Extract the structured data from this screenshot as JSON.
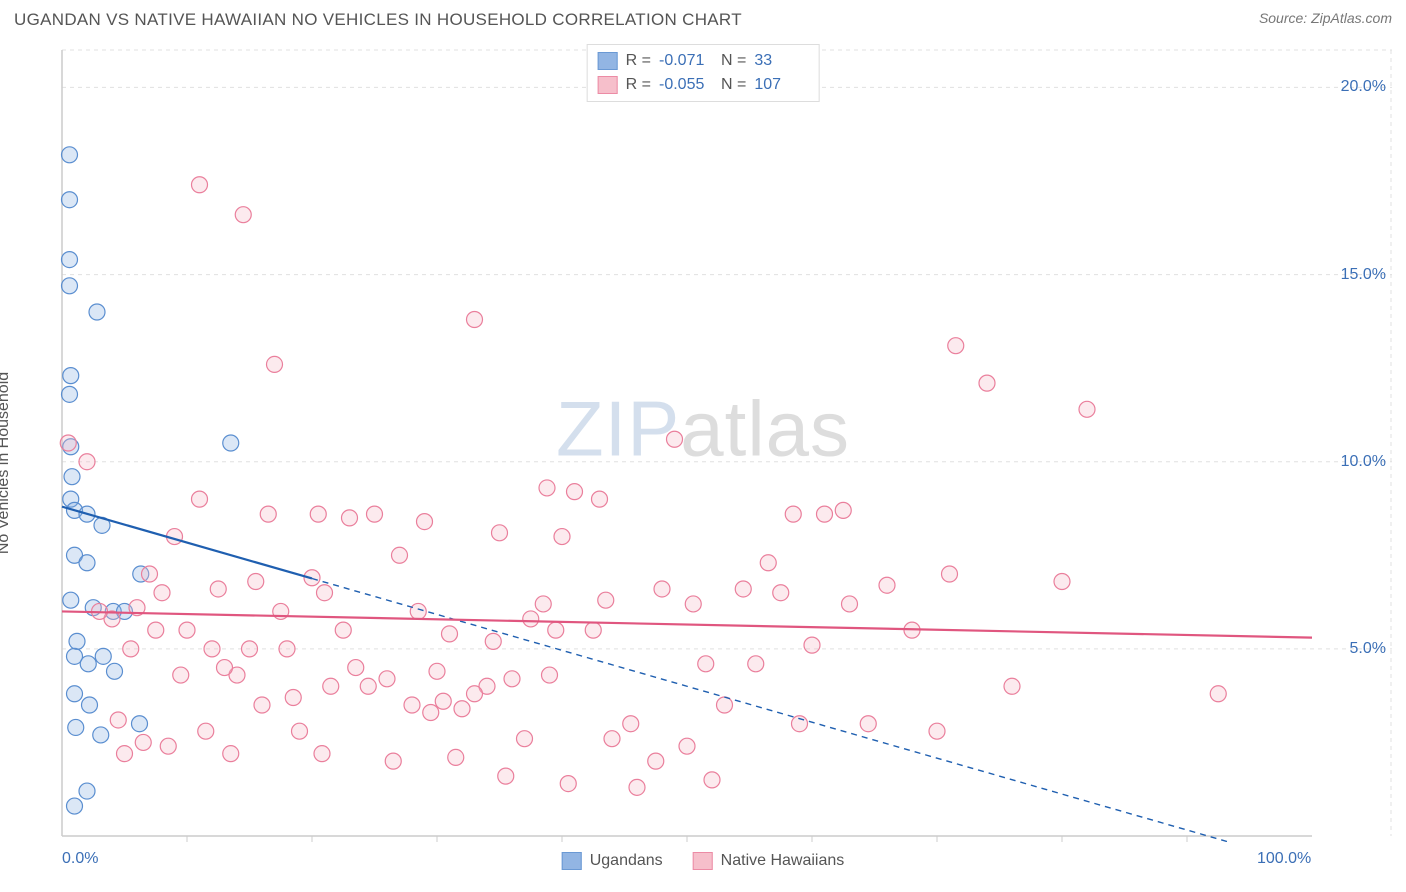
{
  "header": {
    "title": "UGANDAN VS NATIVE HAWAIIAN NO VEHICLES IN HOUSEHOLD CORRELATION CHART",
    "source_label": "Source: ",
    "source_name": "ZipAtlas.com"
  },
  "y_axis_label": "No Vehicles in Household",
  "watermark": {
    "part1": "ZIP",
    "part2": "atlas"
  },
  "chart": {
    "type": "scatter",
    "background_color": "#ffffff",
    "grid_color": "#e0e0e0",
    "axis_color": "#cccccc",
    "label_color": "#3b6fb6",
    "xlim": [
      0,
      100
    ],
    "ylim": [
      0,
      21
    ],
    "y_ticks": [
      {
        "val": 5.0,
        "label": "5.0%"
      },
      {
        "val": 10.0,
        "label": "10.0%"
      },
      {
        "val": 15.0,
        "label": "15.0%"
      },
      {
        "val": 20.0,
        "label": "20.0%"
      }
    ],
    "x_ticks": [
      {
        "val": 0,
        "label": "0.0%"
      },
      {
        "val": 100,
        "label": "100.0%"
      }
    ],
    "x_minor_ticks": [
      10,
      20,
      30,
      40,
      50,
      60,
      70,
      80,
      90
    ],
    "marker_radius": 8,
    "marker_fill_opacity": 0.3,
    "marker_stroke_width": 1.2,
    "line_width_solid": 2.2,
    "line_width_dash": 1.4,
    "dash_pattern": "6,5"
  },
  "series": [
    {
      "key": "ugandans",
      "name": "Ugandans",
      "color_fill": "#87aee0",
      "color_stroke": "#5a8ed0",
      "color_line": "#1f5fb0",
      "stats": {
        "R": "-0.071",
        "N": "33"
      },
      "trend": {
        "x1": 0,
        "y1": 8.8,
        "x2": 100,
        "y2": -0.8,
        "solid_until_x": 20
      },
      "points": [
        [
          0.6,
          18.2
        ],
        [
          0.6,
          17.0
        ],
        [
          0.6,
          15.4
        ],
        [
          0.6,
          14.7
        ],
        [
          2.8,
          14.0
        ],
        [
          0.7,
          12.3
        ],
        [
          0.6,
          11.8
        ],
        [
          0.7,
          10.4
        ],
        [
          0.8,
          9.6
        ],
        [
          0.7,
          9.0
        ],
        [
          1.0,
          8.7
        ],
        [
          2.0,
          8.6
        ],
        [
          3.2,
          8.3
        ],
        [
          1.0,
          7.5
        ],
        [
          2.0,
          7.3
        ],
        [
          6.3,
          7.0
        ],
        [
          0.7,
          6.3
        ],
        [
          2.5,
          6.1
        ],
        [
          4.1,
          6.0
        ],
        [
          5.0,
          6.0
        ],
        [
          1.2,
          5.2
        ],
        [
          1.0,
          4.8
        ],
        [
          2.1,
          4.6
        ],
        [
          3.3,
          4.8
        ],
        [
          4.2,
          4.4
        ],
        [
          1.0,
          3.8
        ],
        [
          2.2,
          3.5
        ],
        [
          1.1,
          2.9
        ],
        [
          3.1,
          2.7
        ],
        [
          2.0,
          1.2
        ],
        [
          1.0,
          0.8
        ],
        [
          13.5,
          10.5
        ],
        [
          6.2,
          3.0
        ]
      ]
    },
    {
      "key": "hawaiians",
      "name": "Native Hawaiians",
      "color_fill": "#f6b9c6",
      "color_stroke": "#ea7f9c",
      "color_line": "#e0567f",
      "stats": {
        "R": "-0.055",
        "N": "107"
      },
      "trend": {
        "x1": 0,
        "y1": 6.0,
        "x2": 100,
        "y2": 5.3,
        "solid_until_x": 100
      },
      "points": [
        [
          0.5,
          10.5
        ],
        [
          11.0,
          17.4
        ],
        [
          14.5,
          16.6
        ],
        [
          17.0,
          12.6
        ],
        [
          33.0,
          13.8
        ],
        [
          49.0,
          10.6
        ],
        [
          71.5,
          13.1
        ],
        [
          74.0,
          12.1
        ],
        [
          82.0,
          11.4
        ],
        [
          80.0,
          6.8
        ],
        [
          92.5,
          3.8
        ],
        [
          62.5,
          8.7
        ],
        [
          66.0,
          6.7
        ],
        [
          58.5,
          8.6
        ],
        [
          60.0,
          5.1
        ],
        [
          54.5,
          6.6
        ],
        [
          50.0,
          2.4
        ],
        [
          47.5,
          2.0
        ],
        [
          46.0,
          1.3
        ],
        [
          52.0,
          1.5
        ],
        [
          41.0,
          9.2
        ],
        [
          40.0,
          8.0
        ],
        [
          38.5,
          6.2
        ],
        [
          37.0,
          2.6
        ],
        [
          35.0,
          8.1
        ],
        [
          34.0,
          4.0
        ],
        [
          33.0,
          3.8
        ],
        [
          31.5,
          2.1
        ],
        [
          30.0,
          4.4
        ],
        [
          29.0,
          8.4
        ],
        [
          28.0,
          3.5
        ],
        [
          26.5,
          2.0
        ],
        [
          25.0,
          8.6
        ],
        [
          23.5,
          4.5
        ],
        [
          22.5,
          5.5
        ],
        [
          21.5,
          4.0
        ],
        [
          20.5,
          8.6
        ],
        [
          20.0,
          6.9
        ],
        [
          19.0,
          2.8
        ],
        [
          18.0,
          5.0
        ],
        [
          17.5,
          6.0
        ],
        [
          16.5,
          8.6
        ],
        [
          15.5,
          6.8
        ],
        [
          15.0,
          5.0
        ],
        [
          14.0,
          4.3
        ],
        [
          12.5,
          6.6
        ],
        [
          12.0,
          5.0
        ],
        [
          11.0,
          9.0
        ],
        [
          10.0,
          5.5
        ],
        [
          9.5,
          4.3
        ],
        [
          8.5,
          2.4
        ],
        [
          8.0,
          6.5
        ],
        [
          7.5,
          5.5
        ],
        [
          7.0,
          7.0
        ],
        [
          6.0,
          6.1
        ],
        [
          5.5,
          5.0
        ],
        [
          5.0,
          2.2
        ],
        [
          4.0,
          5.8
        ],
        [
          3.0,
          6.0
        ],
        [
          2.0,
          10.0
        ],
        [
          4.5,
          3.1
        ],
        [
          6.5,
          2.5
        ],
        [
          9.0,
          8.0
        ],
        [
          13.5,
          2.2
        ],
        [
          26.0,
          4.2
        ],
        [
          27.0,
          7.5
        ],
        [
          38.8,
          9.3
        ],
        [
          39.5,
          5.5
        ],
        [
          42.5,
          5.5
        ],
        [
          43.5,
          6.3
        ],
        [
          44.0,
          2.6
        ],
        [
          55.5,
          4.6
        ],
        [
          56.5,
          7.3
        ],
        [
          61.0,
          8.6
        ],
        [
          63.0,
          6.2
        ],
        [
          40.5,
          1.4
        ],
        [
          35.5,
          1.6
        ],
        [
          30.5,
          3.6
        ],
        [
          29.5,
          3.3
        ],
        [
          24.5,
          4.0
        ],
        [
          23.0,
          8.5
        ],
        [
          21.0,
          6.5
        ],
        [
          50.5,
          6.2
        ],
        [
          51.5,
          4.6
        ],
        [
          57.5,
          6.5
        ],
        [
          64.5,
          3.0
        ],
        [
          68.0,
          5.5
        ],
        [
          70.0,
          2.8
        ],
        [
          34.5,
          5.2
        ],
        [
          36.0,
          4.2
        ],
        [
          20.8,
          2.2
        ],
        [
          48.0,
          6.6
        ],
        [
          45.5,
          3.0
        ],
        [
          39.0,
          4.3
        ],
        [
          28.5,
          6.0
        ],
        [
          16.0,
          3.5
        ],
        [
          13.0,
          4.5
        ],
        [
          43.0,
          9.0
        ],
        [
          53.0,
          3.5
        ],
        [
          59.0,
          3.0
        ],
        [
          31.0,
          5.4
        ],
        [
          32.0,
          3.4
        ],
        [
          11.5,
          2.8
        ],
        [
          18.5,
          3.7
        ],
        [
          71.0,
          7.0
        ],
        [
          76.0,
          4.0
        ],
        [
          37.5,
          5.8
        ]
      ]
    }
  ],
  "stats_legend": {
    "r_label": "R =",
    "n_label": "N ="
  }
}
